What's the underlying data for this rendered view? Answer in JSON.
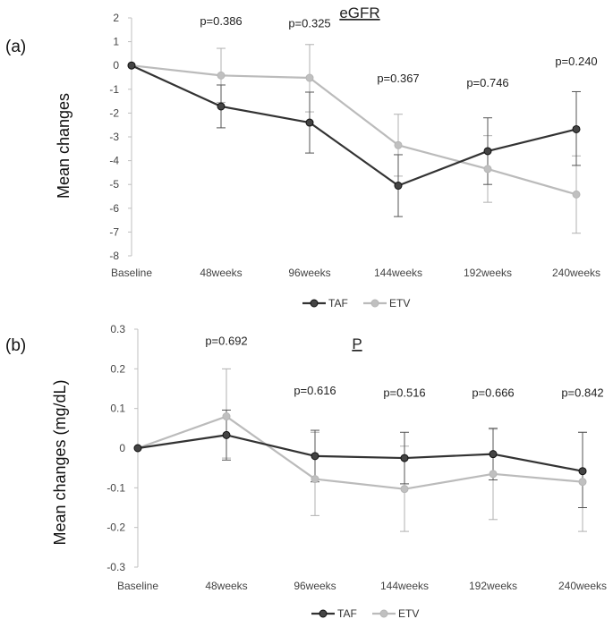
{
  "chart_data": [
    {
      "type": "line",
      "panel_label": "(a)",
      "title": "eGFR",
      "ylabel": "Mean changes",
      "xlabel": "",
      "categories": [
        "Baseline",
        "48weeks",
        "96weeks",
        "144weeks",
        "192weeks",
        "240weeks"
      ],
      "ylim": [
        -8,
        2
      ],
      "yticks": [
        2,
        1,
        0,
        -1,
        -2,
        -3,
        -4,
        -5,
        -6,
        -7,
        -8
      ],
      "ytick_labels": [
        "2",
        "1",
        "0",
        "-1",
        "-2",
        "-3",
        "-4",
        "-5",
        "-6",
        "-7",
        "-8"
      ],
      "pvalues": [
        "",
        "p=0.386",
        "p=0.325",
        "p=0.367",
        "p=0.746",
        "p=0.240"
      ],
      "pvalue_y": [
        null,
        1.7,
        1.6,
        -0.7,
        -0.9,
        0.0
      ],
      "series": [
        {
          "name": "TAF",
          "color": "#333333",
          "values": [
            0,
            -1.72,
            -2.4,
            -5.05,
            -3.6,
            -2.68
          ],
          "err_low": [
            null,
            -2.62,
            -3.68,
            -6.35,
            -5.0,
            -4.2
          ],
          "err_high": [
            null,
            -0.82,
            -1.12,
            -3.75,
            -2.2,
            -1.1
          ]
        },
        {
          "name": "ETV",
          "color": "#bbbbbb",
          "values": [
            0,
            -0.42,
            -0.52,
            -3.35,
            -4.35,
            -5.42
          ],
          "err_low": [
            null,
            -1.55,
            -1.95,
            -4.65,
            -5.75,
            -7.05
          ],
          "err_high": [
            null,
            0.72,
            0.88,
            -2.05,
            -2.95,
            -3.8
          ]
        }
      ],
      "legend": [
        "TAF",
        "ETV"
      ],
      "legend_position": "bottom-center"
    },
    {
      "type": "line",
      "panel_label": "(b)",
      "title": "P",
      "ylabel": "Mean changes (mg/dL)",
      "xlabel": "",
      "categories": [
        "Baseline",
        "48weeks",
        "96weeks",
        "144weeks",
        "192weeks",
        "240weeks"
      ],
      "ylim": [
        -0.3,
        0.3
      ],
      "yticks": [
        0.3,
        0.2,
        0.1,
        0,
        -0.1,
        -0.2,
        -0.3
      ],
      "ytick_labels": [
        "0.3",
        "0.2",
        "0.1",
        "0",
        "-0.1",
        "-0.2",
        "-0.3"
      ],
      "pvalues": [
        "",
        "p=0.692",
        "p=0.616",
        "p=0.516",
        "p=0.666",
        "p=0.842"
      ],
      "pvalue_y": [
        null,
        0.26,
        0.135,
        0.13,
        0.13,
        0.13
      ],
      "series": [
        {
          "name": "TAF",
          "color": "#333333",
          "values": [
            0,
            0.033,
            -0.02,
            -0.025,
            -0.015,
            -0.058
          ],
          "err_low": [
            null,
            -0.03,
            -0.085,
            -0.09,
            -0.08,
            -0.15
          ],
          "err_high": [
            null,
            0.096,
            0.045,
            0.04,
            0.05,
            0.04
          ]
        },
        {
          "name": "ETV",
          "color": "#bbbbbb",
          "values": [
            0,
            0.08,
            -0.078,
            -0.103,
            -0.065,
            -0.085
          ],
          "err_low": [
            null,
            -0.025,
            -0.17,
            -0.21,
            -0.18,
            -0.21
          ],
          "err_high": [
            null,
            0.2,
            0.04,
            0.005,
            0.048,
            0.04
          ]
        }
      ],
      "legend": [
        "TAF",
        "ETV"
      ],
      "legend_position": "bottom-center"
    }
  ]
}
